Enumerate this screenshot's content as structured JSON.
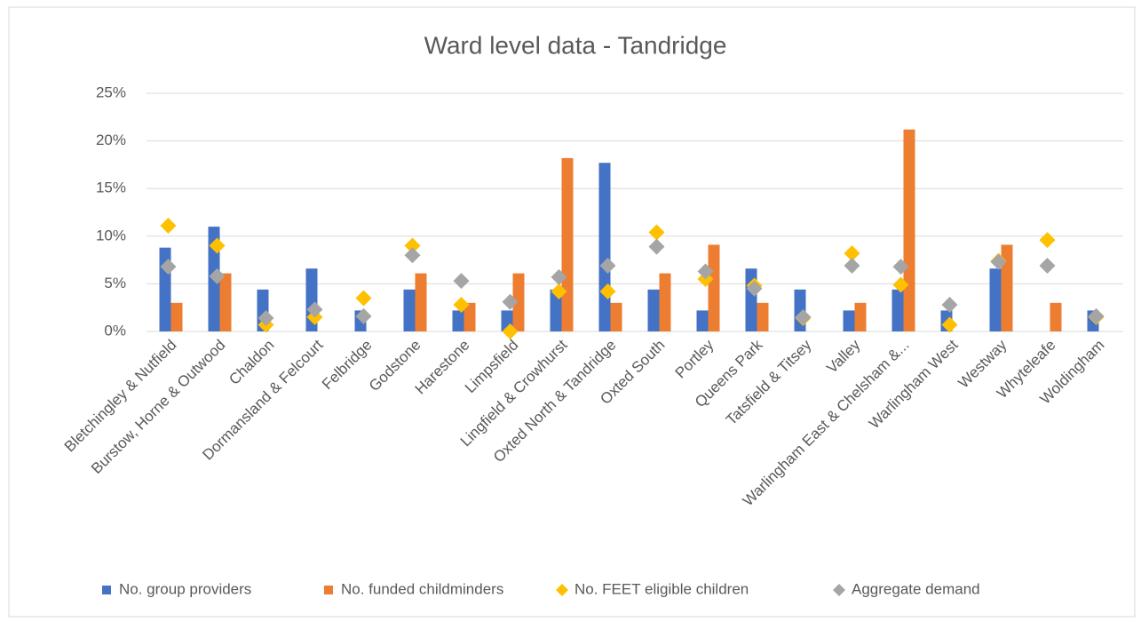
{
  "chart_data": {
    "type": "bar",
    "title": "Ward level data - Tandridge",
    "categories": [
      "Bletchingley & Nutfield",
      "Burstow, Horne & Outwood",
      "Chaldon",
      "Dormansland & Felcourt",
      "Felbridge",
      "Godstone",
      "Harestone",
      "Limpsfield",
      "Lingfield & Crowhurst",
      "Oxted North & Tandridge",
      "Oxted South",
      "Portley",
      "Queens Park",
      "Tatsfield & Titsey",
      "Valley",
      "Warlingham East & Chelsham &...",
      "Warlingham West",
      "Westway",
      "Whyteleafe",
      "Woldingham"
    ],
    "series": [
      {
        "name": "No. group providers",
        "type": "bar",
        "color": "#4472c4",
        "values": [
          8.8,
          11.0,
          4.4,
          6.6,
          2.2,
          4.4,
          2.2,
          2.2,
          4.4,
          17.7,
          4.4,
          2.2,
          6.6,
          4.4,
          2.2,
          4.4,
          2.2,
          6.6,
          0,
          2.2
        ]
      },
      {
        "name": "No. funded childminders",
        "type": "bar",
        "color": "#ed7d31",
        "values": [
          3.0,
          6.1,
          0,
          0,
          0,
          6.1,
          3.0,
          6.1,
          18.2,
          3.0,
          6.1,
          9.1,
          3.0,
          0,
          3.0,
          21.2,
          0,
          9.1,
          3.0,
          0
        ]
      },
      {
        "name": "No. FEET eligible children",
        "type": "point",
        "color": "#ffc000",
        "values": [
          11.1,
          9.0,
          0.7,
          1.5,
          3.5,
          9.0,
          2.8,
          0,
          4.2,
          4.2,
          10.4,
          5.5,
          4.8,
          1.4,
          8.2,
          4.9,
          0.7,
          7.4,
          9.6,
          1.5
        ]
      },
      {
        "name": "Aggregate demand",
        "type": "point",
        "color": "#a5a5a5",
        "values": [
          6.8,
          5.8,
          1.4,
          2.3,
          1.6,
          8.0,
          5.3,
          3.1,
          5.7,
          6.9,
          8.9,
          6.3,
          4.5,
          1.5,
          6.9,
          6.8,
          2.8,
          7.3,
          6.9,
          1.6
        ]
      }
    ],
    "ylim": [
      0,
      25
    ],
    "yticks": [
      {
        "value": 0,
        "label": "0%"
      },
      {
        "value": 5,
        "label": "5%"
      },
      {
        "value": 10,
        "label": "10%"
      },
      {
        "value": 15,
        "label": "15%"
      },
      {
        "value": 20,
        "label": "20%"
      },
      {
        "value": 25,
        "label": "25%"
      }
    ],
    "grid": true,
    "legend": "bottom"
  }
}
